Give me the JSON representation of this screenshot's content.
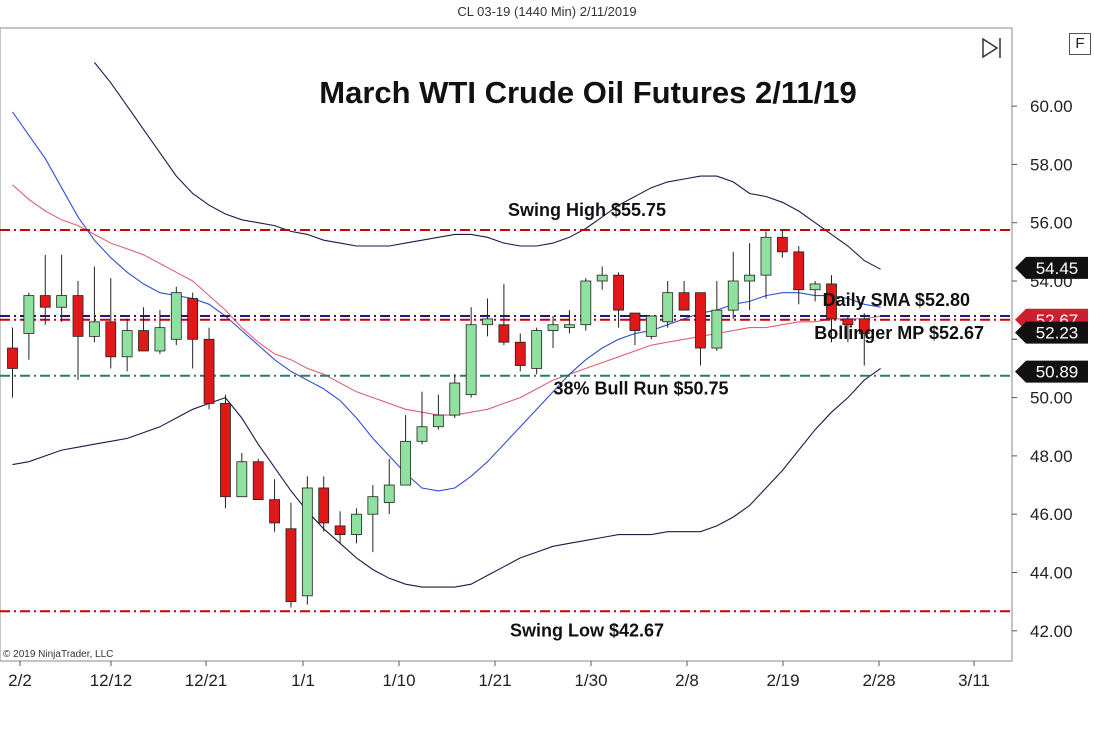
{
  "header": {
    "instrument_title": "CL 03-19 (1440 Min)  2/11/2019"
  },
  "footer": {
    "copyright": "© 2019 NinjaTrader, LLC"
  },
  "panel": {
    "f_button": "F"
  },
  "colors": {
    "bull": "#90e0a0",
    "bear": "#e01818",
    "band": "#1a1a4a",
    "sma": "#3050d0",
    "mid": "#e06070",
    "swing": "#cc0000",
    "bull_run": "#2a7a6a",
    "daily_sma": "#1a1a7a"
  },
  "chart_data": {
    "type": "candlestick",
    "title": "March WTI Crude Oil Futures 2/11/19",
    "ylim": [
      41.0,
      62.0
    ],
    "y_ticks": [
      42.0,
      44.0,
      46.0,
      48.0,
      50.0,
      52.0,
      54.0,
      56.0,
      58.0,
      60.0
    ],
    "y_tick_labels": [
      "42.00",
      "44.00",
      "46.00",
      "48.00",
      "50.00",
      "",
      "",
      "56.00",
      "58.00",
      "60.00"
    ],
    "x_tick_labels": [
      "2/2",
      "12/12",
      "12/21",
      "1/1",
      "1/10",
      "1/21",
      "1/30",
      "2/8",
      "2/19",
      "2/28",
      "3/11"
    ],
    "candles": [
      {
        "o": 51.7,
        "h": 52.4,
        "l": 50.0,
        "c": 51.0
      },
      {
        "o": 52.2,
        "h": 53.6,
        "l": 51.3,
        "c": 53.5
      },
      {
        "o": 53.5,
        "h": 54.9,
        "l": 52.5,
        "c": 53.1
      },
      {
        "o": 53.1,
        "h": 54.9,
        "l": 52.6,
        "c": 53.5
      },
      {
        "o": 53.5,
        "h": 54.0,
        "l": 50.6,
        "c": 52.1
      },
      {
        "o": 52.1,
        "h": 54.5,
        "l": 51.9,
        "c": 52.6
      },
      {
        "o": 52.6,
        "h": 54.1,
        "l": 51.0,
        "c": 51.4
      },
      {
        "o": 51.4,
        "h": 52.7,
        "l": 50.9,
        "c": 52.3
      },
      {
        "o": 52.3,
        "h": 53.1,
        "l": 51.6,
        "c": 51.6
      },
      {
        "o": 51.6,
        "h": 53.0,
        "l": 51.5,
        "c": 52.4
      },
      {
        "o": 52.0,
        "h": 53.8,
        "l": 51.8,
        "c": 53.6
      },
      {
        "o": 53.4,
        "h": 53.6,
        "l": 51.0,
        "c": 52.0
      },
      {
        "o": 52.0,
        "h": 52.4,
        "l": 49.6,
        "c": 49.8
      },
      {
        "o": 49.8,
        "h": 50.1,
        "l": 46.2,
        "c": 46.6
      },
      {
        "o": 46.6,
        "h": 48.1,
        "l": 46.6,
        "c": 47.8
      },
      {
        "o": 47.8,
        "h": 47.9,
        "l": 46.5,
        "c": 46.5
      },
      {
        "o": 46.5,
        "h": 47.2,
        "l": 45.4,
        "c": 45.7
      },
      {
        "o": 45.5,
        "h": 46.4,
        "l": 42.8,
        "c": 43.0
      },
      {
        "o": 43.2,
        "h": 47.3,
        "l": 42.9,
        "c": 46.9
      },
      {
        "o": 46.9,
        "h": 47.3,
        "l": 45.4,
        "c": 45.7
      },
      {
        "o": 45.6,
        "h": 46.1,
        "l": 45.0,
        "c": 45.3
      },
      {
        "o": 45.3,
        "h": 46.2,
        "l": 45.0,
        "c": 46.0
      },
      {
        "o": 46.0,
        "h": 47.0,
        "l": 44.7,
        "c": 46.6
      },
      {
        "o": 46.4,
        "h": 47.9,
        "l": 46.0,
        "c": 47.0
      },
      {
        "o": 47.0,
        "h": 49.4,
        "l": 47.0,
        "c": 48.5
      },
      {
        "o": 48.5,
        "h": 50.2,
        "l": 48.4,
        "c": 49.0
      },
      {
        "o": 49.0,
        "h": 50.1,
        "l": 48.9,
        "c": 49.4
      },
      {
        "o": 49.4,
        "h": 50.8,
        "l": 49.3,
        "c": 50.5
      },
      {
        "o": 50.1,
        "h": 53.1,
        "l": 50.0,
        "c": 52.5
      },
      {
        "o": 52.5,
        "h": 53.4,
        "l": 52.1,
        "c": 52.7
      },
      {
        "o": 52.5,
        "h": 53.9,
        "l": 51.8,
        "c": 51.9
      },
      {
        "o": 51.9,
        "h": 52.2,
        "l": 50.9,
        "c": 51.1
      },
      {
        "o": 51.0,
        "h": 52.4,
        "l": 50.8,
        "c": 52.3
      },
      {
        "o": 52.3,
        "h": 52.8,
        "l": 51.7,
        "c": 52.5
      },
      {
        "o": 52.4,
        "h": 53.0,
        "l": 52.2,
        "c": 52.5
      },
      {
        "o": 52.5,
        "h": 54.1,
        "l": 52.3,
        "c": 54.0
      },
      {
        "o": 54.0,
        "h": 54.5,
        "l": 53.7,
        "c": 54.2
      },
      {
        "o": 54.2,
        "h": 54.3,
        "l": 52.4,
        "c": 53.0
      },
      {
        "o": 52.9,
        "h": 52.9,
        "l": 51.8,
        "c": 52.3
      },
      {
        "o": 52.1,
        "h": 52.8,
        "l": 52.0,
        "c": 52.8
      },
      {
        "o": 52.6,
        "h": 54.0,
        "l": 52.4,
        "c": 53.6
      },
      {
        "o": 53.6,
        "h": 54.0,
        "l": 53.2,
        "c": 53.0
      },
      {
        "o": 53.6,
        "h": 53.6,
        "l": 51.1,
        "c": 51.7
      },
      {
        "o": 51.7,
        "h": 54.0,
        "l": 51.6,
        "c": 53.0
      },
      {
        "o": 53.0,
        "h": 55.0,
        "l": 52.7,
        "c": 54.0
      },
      {
        "o": 54.0,
        "h": 55.3,
        "l": 53.0,
        "c": 54.2
      },
      {
        "o": 54.2,
        "h": 55.7,
        "l": 53.4,
        "c": 55.5
      },
      {
        "o": 55.5,
        "h": 55.75,
        "l": 54.8,
        "c": 55.0
      },
      {
        "o": 55.0,
        "h": 55.2,
        "l": 53.2,
        "c": 53.7
      },
      {
        "o": 53.7,
        "h": 54.0,
        "l": 53.3,
        "c": 53.9
      },
      {
        "o": 53.9,
        "h": 54.2,
        "l": 51.9,
        "c": 52.7
      },
      {
        "o": 52.7,
        "h": 52.8,
        "l": 51.9,
        "c": 52.5
      },
      {
        "o": 52.7,
        "h": 52.9,
        "l": 51.1,
        "c": 52.2
      }
    ],
    "upper_band": [
      null,
      null,
      null,
      null,
      null,
      61.5,
      60.8,
      60.0,
      59.2,
      58.4,
      57.6,
      57.0,
      56.6,
      56.3,
      56.1,
      56.0,
      55.9,
      55.7,
      55.6,
      55.4,
      55.3,
      55.2,
      55.2,
      55.2,
      55.3,
      55.4,
      55.5,
      55.6,
      55.6,
      55.5,
      55.3,
      55.2,
      55.2,
      55.3,
      55.5,
      55.8,
      56.2,
      56.6,
      56.9,
      57.2,
      57.4,
      57.5,
      57.6,
      57.6,
      57.4,
      57.0,
      56.9,
      56.7,
      56.4,
      56.0,
      55.6,
      55.2,
      54.7,
      54.4
    ],
    "middle_band": [
      57.3,
      56.8,
      56.4,
      56.1,
      55.9,
      55.6,
      55.3,
      55.1,
      54.9,
      54.6,
      54.3,
      54.0,
      53.5,
      53.0,
      52.4,
      51.9,
      51.5,
      51.3,
      51.0,
      50.8,
      50.5,
      50.2,
      50.0,
      49.8,
      49.6,
      49.5,
      49.4,
      49.4,
      49.5,
      49.6,
      49.8,
      50.0,
      50.3,
      50.6,
      50.8,
      51.0,
      51.2,
      51.4,
      51.6,
      51.8,
      51.9,
      52.0,
      52.1,
      52.2,
      52.3,
      52.4,
      52.4,
      52.5,
      52.6,
      52.6,
      52.7,
      52.7,
      52.7,
      52.8
    ],
    "lower_band": [
      47.7,
      47.8,
      48.0,
      48.2,
      48.3,
      48.4,
      48.5,
      48.6,
      48.8,
      49.0,
      49.3,
      49.6,
      49.8,
      50.0,
      49.3,
      48.4,
      47.6,
      46.8,
      46.1,
      45.5,
      45.0,
      44.5,
      44.1,
      43.8,
      43.6,
      43.5,
      43.5,
      43.5,
      43.6,
      43.9,
      44.2,
      44.5,
      44.7,
      44.9,
      45.0,
      45.1,
      45.2,
      45.3,
      45.3,
      45.3,
      45.4,
      45.4,
      45.4,
      45.6,
      45.9,
      46.3,
      46.9,
      47.5,
      48.2,
      48.9,
      49.5,
      50.0,
      50.6,
      51.0
    ],
    "sma": [
      59.8,
      59.0,
      58.2,
      57.2,
      56.2,
      55.4,
      54.8,
      54.3,
      53.9,
      53.6,
      53.5,
      53.4,
      53.2,
      52.8,
      52.3,
      51.8,
      51.3,
      50.9,
      50.6,
      50.3,
      49.9,
      49.3,
      48.6,
      48.0,
      47.4,
      46.9,
      46.8,
      46.9,
      47.3,
      47.8,
      48.4,
      49.0,
      49.6,
      50.2,
      50.8,
      51.3,
      51.7,
      52.0,
      52.2,
      52.3,
      52.5,
      52.7,
      52.9,
      53.0,
      53.2,
      53.3,
      53.5,
      53.6,
      53.6,
      53.5,
      53.5,
      53.4,
      53.2,
      53.1
    ],
    "levels": [
      {
        "value": 55.75,
        "label": "Swing High $55.75",
        "style": "swing"
      },
      {
        "value": 42.67,
        "label": "Swing Low $42.67",
        "style": "swing"
      },
      {
        "value": 50.75,
        "label": "38% Bull Run $50.75",
        "style": "bull_run"
      },
      {
        "value": 52.8,
        "label": "Daily SMA $52.80",
        "style": "daily_sma"
      },
      {
        "value": 52.67,
        "label": "Bollinger MP $52.67",
        "style": "swing"
      }
    ],
    "price_markers": [
      {
        "value": 54.45,
        "label": "54.45",
        "color": "#111111"
      },
      {
        "value": 52.67,
        "label": "52.67",
        "color": "#cc2030"
      },
      {
        "value": 52.23,
        "label": "52.23",
        "color": "#111111"
      },
      {
        "value": 50.89,
        "label": "50.89",
        "color": "#111111"
      }
    ]
  }
}
